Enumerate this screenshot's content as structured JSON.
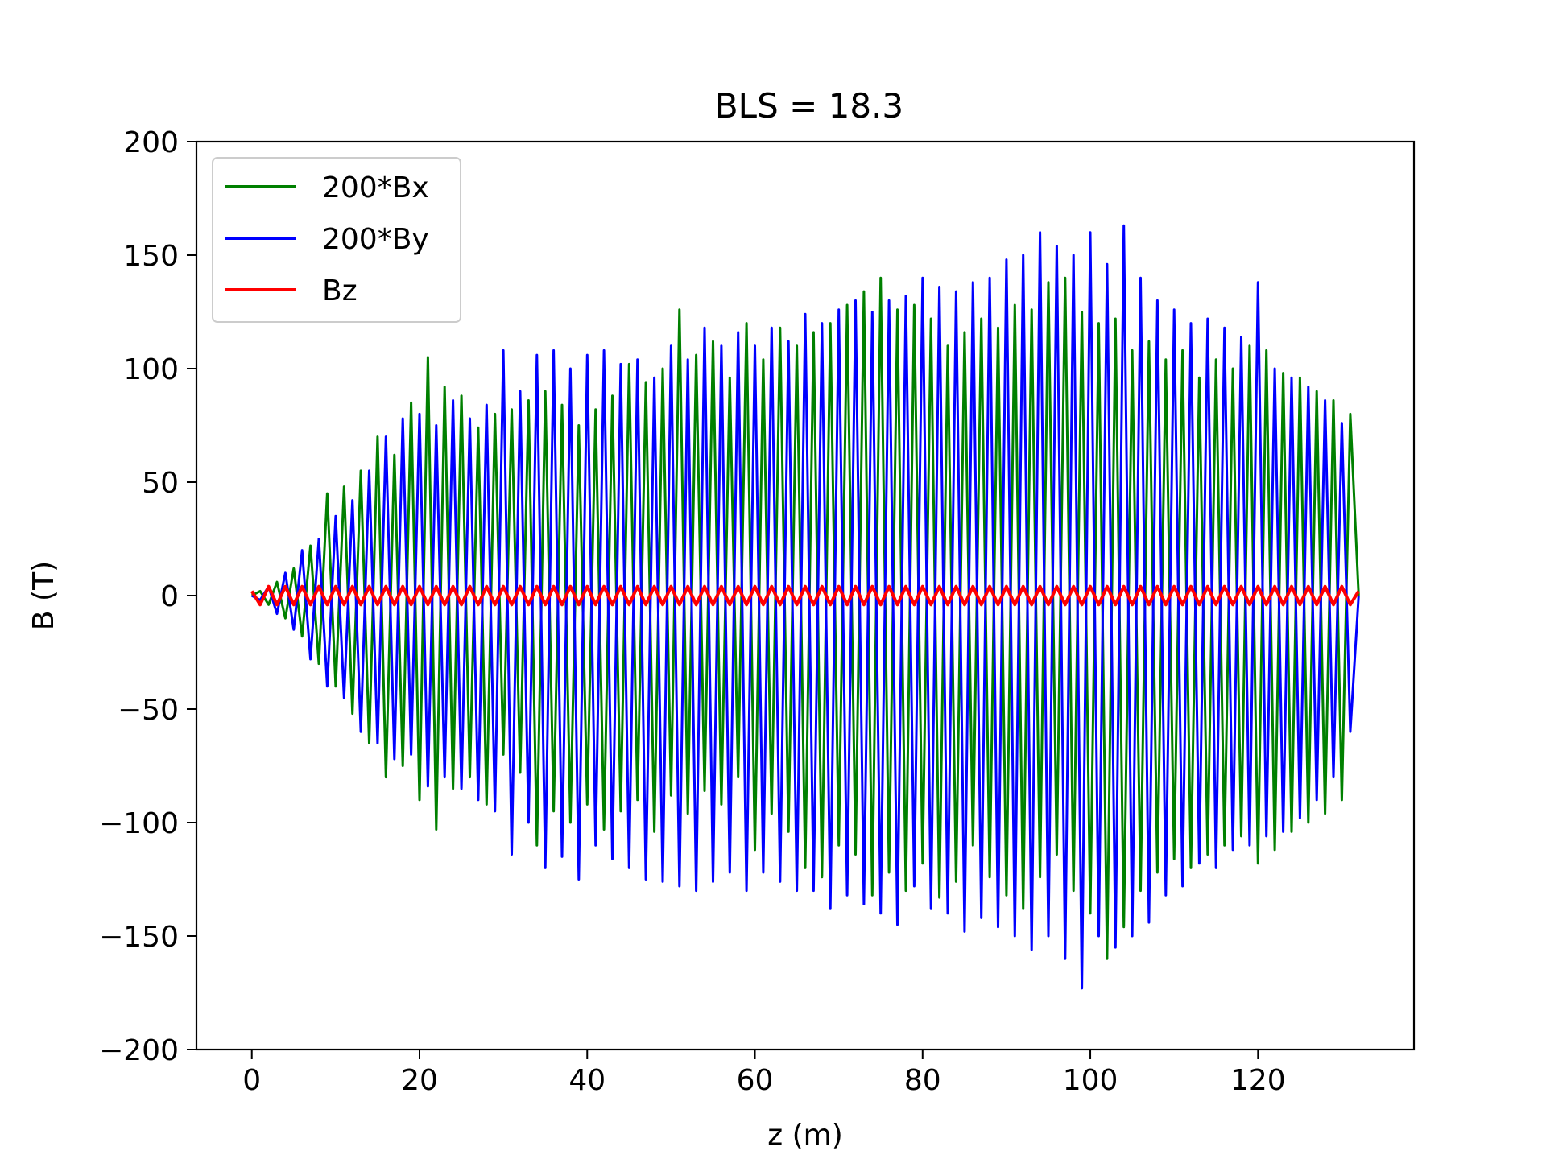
{
  "chart_data": {
    "type": "line",
    "title": "BLS = 18.3",
    "xlabel": "z (m)",
    "ylabel": "B (T)",
    "xlim": [
      -6.6,
      138.6
    ],
    "ylim": [
      -200,
      200
    ],
    "x_ticks": [
      0,
      20,
      40,
      60,
      80,
      100,
      120
    ],
    "x_tick_labels": [
      "0",
      "20",
      "40",
      "60",
      "80",
      "100",
      "120"
    ],
    "y_ticks": [
      -200,
      -150,
      -100,
      -50,
      0,
      50,
      100,
      150,
      200
    ],
    "y_tick_labels": [
      "−200",
      "−150",
      "−100",
      "−50",
      "0",
      "50",
      "100",
      "150",
      "200"
    ],
    "grid": false,
    "legend_position": "top-left",
    "series": [
      {
        "name": "200*Bx",
        "color": "#008000",
        "x": [
          0,
          1,
          2,
          3,
          4,
          5,
          6,
          7,
          8,
          9,
          10,
          11,
          12,
          13,
          14,
          15,
          16,
          17,
          18,
          19,
          20,
          21,
          22,
          23,
          24,
          25,
          26,
          27,
          28,
          29,
          30,
          31,
          32,
          33,
          34,
          35,
          36,
          37,
          38,
          39,
          40,
          41,
          42,
          43,
          44,
          45,
          46,
          47,
          48,
          49,
          50,
          51,
          52,
          53,
          54,
          55,
          56,
          57,
          58,
          59,
          60,
          61,
          62,
          63,
          64,
          65,
          66,
          67,
          68,
          69,
          70,
          71,
          72,
          73,
          74,
          75,
          76,
          77,
          78,
          79,
          80,
          81,
          82,
          83,
          84,
          85,
          86,
          87,
          88,
          89,
          90,
          91,
          92,
          93,
          94,
          95,
          96,
          97,
          98,
          99,
          100,
          101,
          102,
          103,
          104,
          105,
          106,
          107,
          108,
          109,
          110,
          111,
          112,
          113,
          114,
          115,
          116,
          117,
          118,
          119,
          120,
          121,
          122,
          123,
          124,
          125,
          126,
          127,
          128,
          129,
          130,
          131,
          132
        ],
        "values": [
          0,
          2,
          -4,
          6,
          -10,
          12,
          -18,
          22,
          -30,
          45,
          -40,
          48,
          -52,
          55,
          -65,
          70,
          -80,
          62,
          -75,
          85,
          -90,
          105,
          -103,
          92,
          -85,
          88,
          -80,
          74,
          -92,
          80,
          -70,
          82,
          -78,
          86,
          -110,
          90,
          -95,
          84,
          -100,
          75,
          -92,
          82,
          -103,
          88,
          -95,
          102,
          -90,
          94,
          -104,
          100,
          -88,
          126,
          -96,
          106,
          -86,
          112,
          -92,
          96,
          -80,
          120,
          -112,
          104,
          -96,
          118,
          -104,
          110,
          -120,
          116,
          -124,
          120,
          -110,
          128,
          -114,
          134,
          -132,
          140,
          -122,
          126,
          -130,
          128,
          -118,
          122,
          -133,
          110,
          -126,
          116,
          -110,
          122,
          -124,
          118,
          -132,
          128,
          -138,
          126,
          -124,
          138,
          -114,
          140,
          -130,
          125,
          -140,
          120,
          -160,
          122,
          -146,
          108,
          -130,
          112,
          -122,
          104,
          -116,
          108,
          -120,
          96,
          -114,
          104,
          -110,
          100,
          -106,
          110,
          -118,
          108,
          -112,
          98,
          -104,
          96,
          -100,
          90,
          -96,
          86,
          -90,
          80,
          0
        ]
      },
      {
        "name": "200*By",
        "color": "#0000ff",
        "x": [
          0,
          1,
          2,
          3,
          4,
          5,
          6,
          7,
          8,
          9,
          10,
          11,
          12,
          13,
          14,
          15,
          16,
          17,
          18,
          19,
          20,
          21,
          22,
          23,
          24,
          25,
          26,
          27,
          28,
          29,
          30,
          31,
          32,
          33,
          34,
          35,
          36,
          37,
          38,
          39,
          40,
          41,
          42,
          43,
          44,
          45,
          46,
          47,
          48,
          49,
          50,
          51,
          52,
          53,
          54,
          55,
          56,
          57,
          58,
          59,
          60,
          61,
          62,
          63,
          64,
          65,
          66,
          67,
          68,
          69,
          70,
          71,
          72,
          73,
          74,
          75,
          76,
          77,
          78,
          79,
          80,
          81,
          82,
          83,
          84,
          85,
          86,
          87,
          88,
          89,
          90,
          91,
          92,
          93,
          94,
          95,
          96,
          97,
          98,
          99,
          100,
          101,
          102,
          103,
          104,
          105,
          106,
          107,
          108,
          109,
          110,
          111,
          112,
          113,
          114,
          115,
          116,
          117,
          118,
          119,
          120,
          121,
          122,
          123,
          124,
          125,
          126,
          127,
          128,
          129,
          130,
          131,
          132
        ],
        "values": [
          0,
          -2,
          4,
          -8,
          10,
          -15,
          20,
          -28,
          25,
          -40,
          35,
          -45,
          42,
          -60,
          55,
          -65,
          70,
          -72,
          78,
          -70,
          80,
          -84,
          75,
          -80,
          86,
          -85,
          78,
          -90,
          84,
          -95,
          108,
          -114,
          90,
          -100,
          106,
          -120,
          108,
          -115,
          100,
          -125,
          106,
          -110,
          108,
          -116,
          102,
          -120,
          104,
          -125,
          96,
          -126,
          110,
          -128,
          104,
          -130,
          118,
          -126,
          110,
          -122,
          116,
          -130,
          110,
          -122,
          118,
          -126,
          112,
          -130,
          124,
          -130,
          120,
          -138,
          126,
          -132,
          130,
          -136,
          125,
          -140,
          130,
          -145,
          132,
          -128,
          140,
          -138,
          136,
          -140,
          134,
          -148,
          138,
          -142,
          140,
          -146,
          148,
          -150,
          150,
          -156,
          160,
          -150,
          154,
          -160,
          150,
          -173,
          160,
          -150,
          146,
          -155,
          163,
          -150,
          140,
          -144,
          130,
          -132,
          126,
          -128,
          120,
          -118,
          122,
          -120,
          118,
          -112,
          114,
          -110,
          138,
          -106,
          100,
          -104,
          96,
          -98,
          92,
          -90,
          86,
          -80,
          76,
          -60,
          0
        ]
      },
      {
        "name": "Bz",
        "color": "#ff0000",
        "x": [
          0,
          1,
          2,
          3,
          4,
          5,
          6,
          7,
          8,
          9,
          10,
          11,
          12,
          13,
          14,
          15,
          16,
          17,
          18,
          19,
          20,
          21,
          22,
          23,
          24,
          25,
          26,
          27,
          28,
          29,
          30,
          31,
          32,
          33,
          34,
          35,
          36,
          37,
          38,
          39,
          40,
          41,
          42,
          43,
          44,
          45,
          46,
          47,
          48,
          49,
          50,
          51,
          52,
          53,
          54,
          55,
          56,
          57,
          58,
          59,
          60,
          61,
          62,
          63,
          64,
          65,
          66,
          67,
          68,
          69,
          70,
          71,
          72,
          73,
          74,
          75,
          76,
          77,
          78,
          79,
          80,
          81,
          82,
          83,
          84,
          85,
          86,
          87,
          88,
          89,
          90,
          91,
          92,
          93,
          94,
          95,
          96,
          97,
          98,
          99,
          100,
          101,
          102,
          103,
          104,
          105,
          106,
          107,
          108,
          109,
          110,
          111,
          112,
          113,
          114,
          115,
          116,
          117,
          118,
          119,
          120,
          121,
          122,
          123,
          124,
          125,
          126,
          127,
          128,
          129,
          130,
          131,
          132
        ],
        "values": [
          2,
          -4,
          4,
          -4,
          4,
          -4,
          4,
          -4,
          4,
          -4,
          4,
          -4,
          4,
          -4,
          4,
          -4,
          4,
          -4,
          4,
          -4,
          4,
          -4,
          4,
          -4,
          4,
          -4,
          4,
          -4,
          4,
          -4,
          4,
          -4,
          4,
          -4,
          4,
          -4,
          4,
          -4,
          4,
          -4,
          4,
          -4,
          4,
          -4,
          4,
          -4,
          4,
          -4,
          4,
          -4,
          4,
          -4,
          4,
          -4,
          4,
          -4,
          4,
          -4,
          4,
          -4,
          4,
          -4,
          4,
          -4,
          4,
          -4,
          4,
          -4,
          4,
          -4,
          4,
          -4,
          4,
          -4,
          4,
          -4,
          4,
          -4,
          4,
          -4,
          4,
          -4,
          4,
          -4,
          4,
          -4,
          4,
          -4,
          4,
          -4,
          4,
          -4,
          4,
          -4,
          4,
          -4,
          4,
          -4,
          4,
          -4,
          4,
          -4,
          4,
          -4,
          4,
          -4,
          4,
          -4,
          4,
          -4,
          4,
          -4,
          4,
          -4,
          4,
          -4,
          4,
          -4,
          4,
          -4,
          4,
          -4,
          4,
          -4,
          4,
          -4,
          4,
          -4,
          4,
          -4,
          4,
          -4,
          2
        ]
      }
    ]
  }
}
